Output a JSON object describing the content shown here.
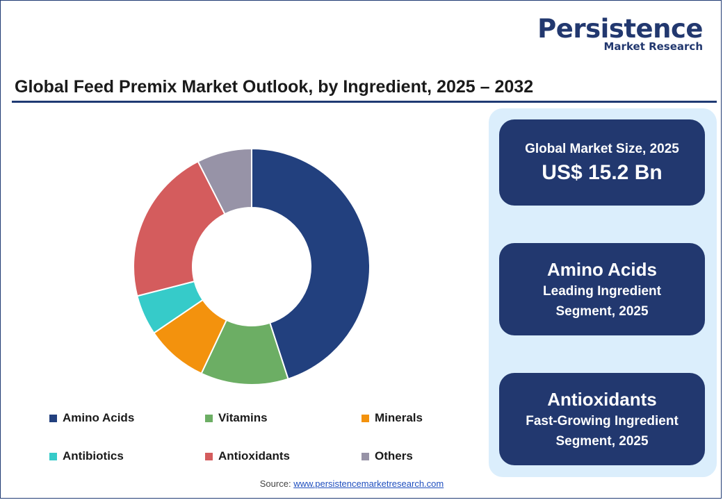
{
  "brand": {
    "name": "Persistence",
    "tagline": "Market Research"
  },
  "title": "Global Feed Premix Market Outlook, by Ingredient, 2025 – 2032",
  "source": {
    "label": "Source:",
    "link_text": "www.persistencemarketresearch.com"
  },
  "cards": [
    {
      "label": "Global Market Size, 2025",
      "value": "US$ 15.2 Bn"
    },
    {
      "value": "Amino Acids",
      "line1": "Leading Ingredient",
      "line2": "Segment, 2025"
    },
    {
      "value": "Antioxidants",
      "line1": "Fast-Growing Ingredient",
      "line2": "Segment, 2025"
    }
  ],
  "chart_data": {
    "type": "pie",
    "donut": true,
    "categories": [
      "Amino Acids",
      "Vitamins",
      "Minerals",
      "Antibiotics",
      "Antioxidants",
      "Others"
    ],
    "values": [
      45,
      12,
      8.5,
      5.5,
      21.5,
      7.5
    ],
    "colors": [
      "#22407e",
      "#6cae64",
      "#f3920d",
      "#36cbc9",
      "#d45c5d",
      "#9793a7"
    ],
    "legend_position": "bottom"
  }
}
